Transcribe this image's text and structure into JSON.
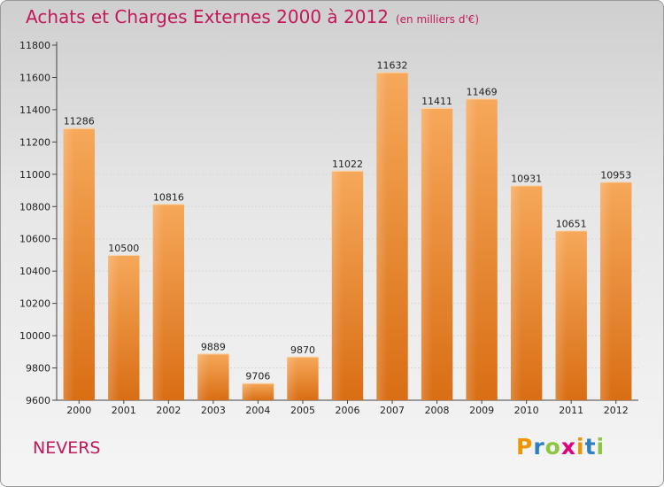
{
  "header": {
    "title": "Achats et Charges Externes 2000 à 2012",
    "unit": "(en milliers d'€)"
  },
  "footer": {
    "city": "NEVERS",
    "logo_letters": [
      "P",
      "r",
      "o",
      "x",
      "i",
      "t",
      "i"
    ],
    "logo_colors": [
      "#f29400",
      "#2e7fc2",
      "#8cc63f",
      "#e2007a",
      "#f29400",
      "#2e7fc2",
      "#8cc63f"
    ]
  },
  "chart_data": {
    "type": "bar",
    "title": "Achats et Charges Externes 2000 à 2012",
    "subtitle": "(en milliers d'€)",
    "xlabel": "",
    "ylabel": "",
    "categories": [
      "2000",
      "2001",
      "2002",
      "2003",
      "2004",
      "2005",
      "2006",
      "2007",
      "2008",
      "2009",
      "2010",
      "2011",
      "2012"
    ],
    "values": [
      11286,
      10500,
      10816,
      9889,
      9706,
      9870,
      11022,
      11632,
      11411,
      11469,
      10931,
      10651,
      10953
    ],
    "ylim": [
      9600,
      11800
    ],
    "yticks": [
      9600,
      9800,
      10000,
      10200,
      10400,
      10600,
      10800,
      11000,
      11200,
      11400,
      11600,
      11800
    ],
    "grid": true,
    "legend": "none",
    "bar_color": "#f0923a"
  }
}
